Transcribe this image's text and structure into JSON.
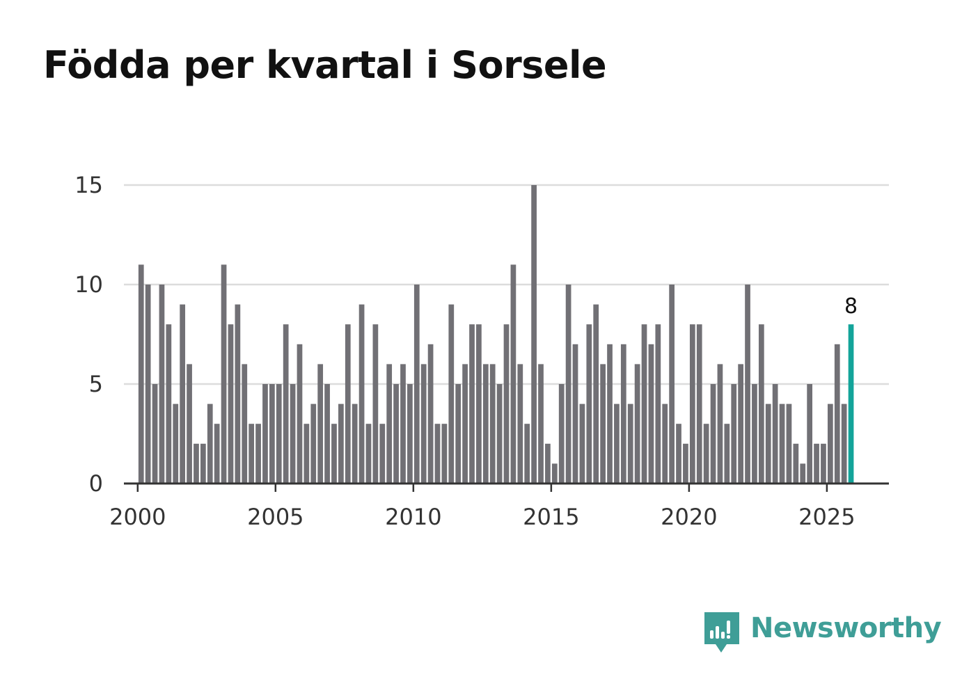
{
  "title": "Födda per kvartal i Sorsele",
  "brand": {
    "name": "Newsworthy",
    "color": "#3f9e97"
  },
  "colors": {
    "bar": "#717075",
    "highlight": "#13a49a",
    "grid": "#dcdcdc",
    "axis": "#333333"
  },
  "chart_data": {
    "type": "bar",
    "title": "Födda per kvartal i Sorsele",
    "xlabel": "",
    "ylabel": "",
    "ylim": [
      0,
      15
    ],
    "xlim": [
      1999.5,
      2027.25
    ],
    "yticks": [
      0,
      5,
      10,
      15
    ],
    "xticks": [
      2000,
      2005,
      2010,
      2015,
      2020,
      2025
    ],
    "grid": true,
    "start_year": 2000,
    "start_quarter": 1,
    "highlight_last": true,
    "last_value_label": "8",
    "values": [
      11,
      10,
      5,
      10,
      8,
      4,
      9,
      6,
      2,
      2,
      4,
      3,
      11,
      8,
      9,
      6,
      3,
      3,
      5,
      5,
      5,
      8,
      5,
      7,
      3,
      4,
      6,
      5,
      3,
      4,
      8,
      4,
      9,
      3,
      8,
      3,
      6,
      5,
      6,
      5,
      10,
      6,
      7,
      3,
      3,
      9,
      5,
      6,
      8,
      8,
      6,
      6,
      5,
      8,
      11,
      6,
      3,
      15,
      6,
      2,
      1,
      5,
      10,
      7,
      4,
      8,
      9,
      6,
      7,
      4,
      7,
      4,
      6,
      8,
      7,
      8,
      4,
      10,
      3,
      2,
      8,
      8,
      3,
      5,
      6,
      3,
      5,
      6,
      10,
      5,
      8,
      4,
      5,
      4,
      4,
      2,
      1,
      5,
      2,
      2,
      4,
      7,
      4,
      8
    ]
  }
}
